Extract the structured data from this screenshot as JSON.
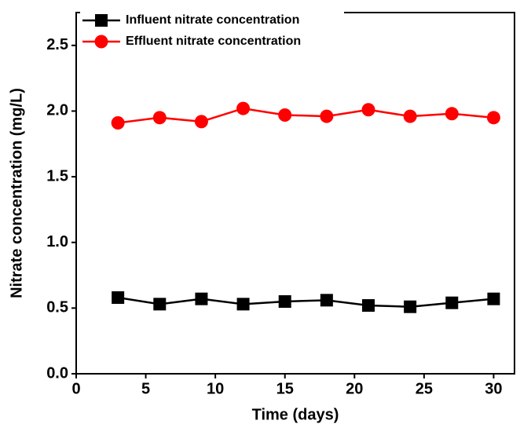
{
  "chart_data": {
    "type": "line",
    "x_label": "Time (days)",
    "y_label": "Nitrate concentration (mg/L)",
    "x": [
      3,
      6,
      9,
      12,
      15,
      18,
      21,
      24,
      27,
      30
    ],
    "series": [
      {
        "name": "Influent nitrate concentration",
        "color": "#000000",
        "marker": "square",
        "values": [
          0.58,
          0.53,
          0.57,
          0.53,
          0.55,
          0.56,
          0.52,
          0.51,
          0.54,
          0.57
        ]
      },
      {
        "name": "Effluent nitrate concentration",
        "color": "#ff0000",
        "marker": "circle",
        "values": [
          1.91,
          1.95,
          1.92,
          2.02,
          1.97,
          1.96,
          2.01,
          1.96,
          1.98,
          1.95
        ]
      }
    ],
    "xlim": [
      0,
      31.5
    ],
    "xticks": [
      0,
      5,
      10,
      15,
      20,
      25,
      30
    ],
    "ylim": [
      0,
      2.75
    ],
    "yticks": [
      {
        "value": 0,
        "label": "0.0"
      },
      {
        "value": 0.5,
        "label": "0.5"
      },
      {
        "value": 1,
        "label": "1.0"
      },
      {
        "value": 1.5,
        "label": "1.5"
      },
      {
        "value": 2,
        "label": "2.0"
      },
      {
        "value": 2.5,
        "label": "2.5"
      }
    ],
    "legend": "upper left"
  }
}
